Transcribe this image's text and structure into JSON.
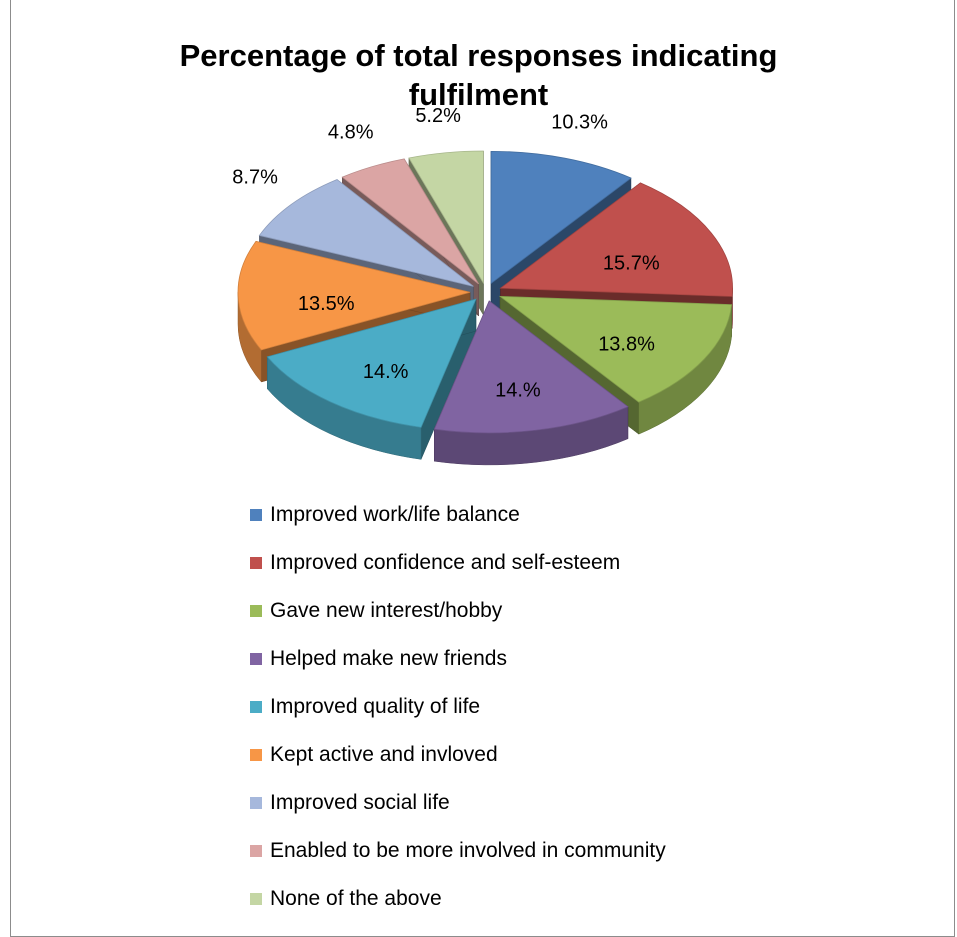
{
  "chart_data": {
    "type": "pie",
    "title": "Percentage of total responses indicating fulfilment",
    "title_lines": [
      "Percentage of total responses indicating",
      "fulfilment"
    ],
    "three_d": true,
    "exploded": true,
    "legend_position": "bottom",
    "slices": [
      {
        "label": "Improved work/life balance",
        "value": 10.3,
        "value_label": "10.3%",
        "color": "#4f81bd"
      },
      {
        "label": "Improved confidence and self-esteem",
        "value": 15.7,
        "value_label": "15.7%",
        "color": "#c0504d"
      },
      {
        "label": "Gave new interest/hobby",
        "value": 13.8,
        "value_label": "13.8%",
        "color": "#9bbb59"
      },
      {
        "label": "Helped make new friends",
        "value": 14.0,
        "value_label": "14.%",
        "color": "#8064a2"
      },
      {
        "label": "Improved quality of life",
        "value": 14.0,
        "value_label": "14.%",
        "color": "#4bacc6"
      },
      {
        "label": "Kept active and invloved",
        "value": 13.5,
        "value_label": "13.5%",
        "color": "#f79646"
      },
      {
        "label": "Improved social life",
        "value": 8.7,
        "value_label": "8.7%",
        "color": "#a6b8dc"
      },
      {
        "label": "Enabled to be more involved in community",
        "value": 4.8,
        "value_label": "4.8%",
        "color": "#dba5a4"
      },
      {
        "label": "None of the above",
        "value": 5.2,
        "value_label": "5.2%",
        "color": "#c4d6a4"
      }
    ]
  }
}
